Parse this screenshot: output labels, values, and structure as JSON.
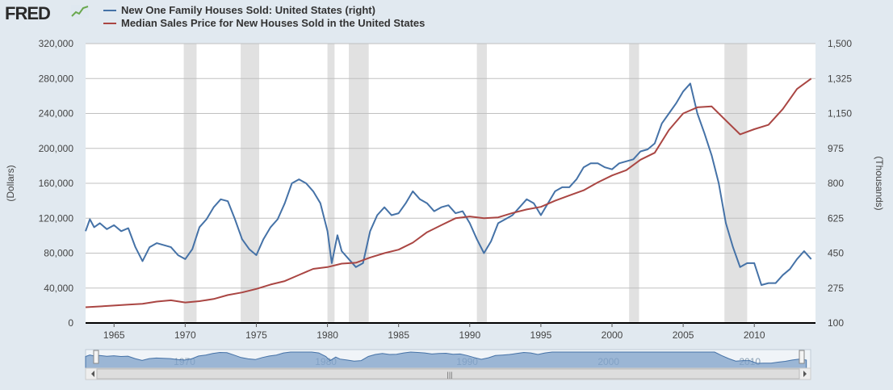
{
  "app": {
    "logo_text": "FRED",
    "logo_icon": "chart-line-icon"
  },
  "colors": {
    "series_houses_sold": "#4572a7",
    "series_median_price": "#aa4643",
    "recession": "#e1e1e1",
    "background": "#e1e9f0"
  },
  "chart_data": {
    "type": "line",
    "legend": [
      "New One Family Houses Sold: United States (right)",
      "Median Sales Price for New Houses Sold in the United States"
    ],
    "legend_position": "top-left",
    "y_left": {
      "label": "(Dollars)",
      "range": [
        0,
        320000
      ],
      "ticks": [
        "0",
        "40,000",
        "80,000",
        "120,000",
        "160,000",
        "200,000",
        "240,000",
        "280,000",
        "320,000"
      ]
    },
    "y_right": {
      "label": "(Thousands)",
      "range": [
        100,
        1500
      ],
      "ticks": [
        "100",
        "275",
        "450",
        "625",
        "800",
        "975",
        "1,150",
        "1,325",
        "1,500"
      ]
    },
    "x": {
      "range": [
        1963.0,
        2014.3
      ],
      "ticks": [
        "1965",
        "1970",
        "1975",
        "1980",
        "1985",
        "1990",
        "1995",
        "2000",
        "2005",
        "2010"
      ]
    },
    "navigator_ticks": [
      "1970",
      "1980",
      "1990",
      "2000",
      "2010"
    ],
    "grid": true,
    "recessions": [
      [
        1969.9,
        1970.8
      ],
      [
        1973.9,
        1975.2
      ],
      [
        1980.0,
        1980.5
      ],
      [
        1981.5,
        1982.9
      ],
      [
        1990.5,
        1991.2
      ],
      [
        2001.2,
        2001.9
      ],
      [
        2007.9,
        2009.5
      ]
    ],
    "series": [
      {
        "name": "New One Family Houses Sold: United States (right)",
        "axis": "right",
        "points": [
          [
            1963.0,
            560
          ],
          [
            1963.3,
            620
          ],
          [
            1963.6,
            580
          ],
          [
            1964.0,
            600
          ],
          [
            1964.5,
            570
          ],
          [
            1965.0,
            590
          ],
          [
            1965.5,
            560
          ],
          [
            1966.0,
            575
          ],
          [
            1966.5,
            480
          ],
          [
            1967.0,
            410
          ],
          [
            1967.5,
            480
          ],
          [
            1968.0,
            500
          ],
          [
            1968.5,
            490
          ],
          [
            1969.0,
            480
          ],
          [
            1969.5,
            440
          ],
          [
            1970.0,
            420
          ],
          [
            1970.5,
            470
          ],
          [
            1971.0,
            580
          ],
          [
            1971.5,
            620
          ],
          [
            1972.0,
            680
          ],
          [
            1972.5,
            720
          ],
          [
            1973.0,
            710
          ],
          [
            1973.5,
            620
          ],
          [
            1974.0,
            520
          ],
          [
            1974.5,
            470
          ],
          [
            1975.0,
            440
          ],
          [
            1975.5,
            520
          ],
          [
            1976.0,
            580
          ],
          [
            1976.5,
            620
          ],
          [
            1977.0,
            700
          ],
          [
            1977.5,
            800
          ],
          [
            1978.0,
            820
          ],
          [
            1978.5,
            800
          ],
          [
            1979.0,
            760
          ],
          [
            1979.5,
            700
          ],
          [
            1980.0,
            560
          ],
          [
            1980.3,
            400
          ],
          [
            1980.7,
            540
          ],
          [
            1981.0,
            460
          ],
          [
            1981.5,
            420
          ],
          [
            1982.0,
            380
          ],
          [
            1982.5,
            400
          ],
          [
            1983.0,
            560
          ],
          [
            1983.5,
            640
          ],
          [
            1984.0,
            680
          ],
          [
            1984.5,
            640
          ],
          [
            1985.0,
            650
          ],
          [
            1985.5,
            700
          ],
          [
            1986.0,
            760
          ],
          [
            1986.5,
            720
          ],
          [
            1987.0,
            700
          ],
          [
            1987.5,
            660
          ],
          [
            1988.0,
            680
          ],
          [
            1988.5,
            690
          ],
          [
            1989.0,
            650
          ],
          [
            1989.5,
            660
          ],
          [
            1990.0,
            600
          ],
          [
            1990.5,
            520
          ],
          [
            1991.0,
            450
          ],
          [
            1991.5,
            510
          ],
          [
            1992.0,
            600
          ],
          [
            1992.5,
            620
          ],
          [
            1993.0,
            640
          ],
          [
            1993.5,
            680
          ],
          [
            1994.0,
            720
          ],
          [
            1994.5,
            700
          ],
          [
            1995.0,
            640
          ],
          [
            1995.5,
            700
          ],
          [
            1996.0,
            760
          ],
          [
            1996.5,
            780
          ],
          [
            1997.0,
            780
          ],
          [
            1997.5,
            820
          ],
          [
            1998.0,
            880
          ],
          [
            1998.5,
            900
          ],
          [
            1999.0,
            900
          ],
          [
            1999.5,
            880
          ],
          [
            2000.0,
            870
          ],
          [
            2000.5,
            900
          ],
          [
            2001.0,
            910
          ],
          [
            2001.5,
            920
          ],
          [
            2002.0,
            960
          ],
          [
            2002.5,
            970
          ],
          [
            2003.0,
            1000
          ],
          [
            2003.5,
            1100
          ],
          [
            2004.0,
            1150
          ],
          [
            2004.5,
            1200
          ],
          [
            2005.0,
            1260
          ],
          [
            2005.5,
            1300
          ],
          [
            2006.0,
            1150
          ],
          [
            2006.5,
            1050
          ],
          [
            2007.0,
            940
          ],
          [
            2007.5,
            800
          ],
          [
            2008.0,
            600
          ],
          [
            2008.5,
            480
          ],
          [
            2009.0,
            380
          ],
          [
            2009.5,
            400
          ],
          [
            2010.0,
            400
          ],
          [
            2010.5,
            290
          ],
          [
            2011.0,
            300
          ],
          [
            2011.5,
            300
          ],
          [
            2012.0,
            340
          ],
          [
            2012.5,
            370
          ],
          [
            2013.0,
            420
          ],
          [
            2013.5,
            460
          ],
          [
            2014.0,
            420
          ]
        ]
      },
      {
        "name": "Median Sales Price for New Houses Sold in the United States",
        "axis": "left",
        "points": [
          [
            1963.0,
            18000
          ],
          [
            1964.0,
            19000
          ],
          [
            1965.0,
            20000
          ],
          [
            1966.0,
            21000
          ],
          [
            1967.0,
            22000
          ],
          [
            1968.0,
            24500
          ],
          [
            1969.0,
            26000
          ],
          [
            1970.0,
            23500
          ],
          [
            1971.0,
            25000
          ],
          [
            1972.0,
            27500
          ],
          [
            1973.0,
            32000
          ],
          [
            1974.0,
            35000
          ],
          [
            1975.0,
            39000
          ],
          [
            1976.0,
            44000
          ],
          [
            1977.0,
            48000
          ],
          [
            1978.0,
            55000
          ],
          [
            1979.0,
            62000
          ],
          [
            1980.0,
            64000
          ],
          [
            1981.0,
            68000
          ],
          [
            1982.0,
            69000
          ],
          [
            1983.0,
            75000
          ],
          [
            1984.0,
            80000
          ],
          [
            1985.0,
            84000
          ],
          [
            1986.0,
            92000
          ],
          [
            1987.0,
            104000
          ],
          [
            1988.0,
            112000
          ],
          [
            1989.0,
            120000
          ],
          [
            1990.0,
            122000
          ],
          [
            1991.0,
            120000
          ],
          [
            1992.0,
            121000
          ],
          [
            1993.0,
            126000
          ],
          [
            1994.0,
            130000
          ],
          [
            1995.0,
            133000
          ],
          [
            1996.0,
            140000
          ],
          [
            1997.0,
            146000
          ],
          [
            1998.0,
            152000
          ],
          [
            1999.0,
            161000
          ],
          [
            2000.0,
            169000
          ],
          [
            2001.0,
            175000
          ],
          [
            2002.0,
            187000
          ],
          [
            2003.0,
            195000
          ],
          [
            2004.0,
            221000
          ],
          [
            2005.0,
            240000
          ],
          [
            2006.0,
            247000
          ],
          [
            2007.0,
            248000
          ],
          [
            2008.0,
            232000
          ],
          [
            2009.0,
            216000
          ],
          [
            2010.0,
            222000
          ],
          [
            2011.0,
            227000
          ],
          [
            2012.0,
            245000
          ],
          [
            2013.0,
            268000
          ],
          [
            2014.0,
            280000
          ]
        ]
      }
    ]
  }
}
